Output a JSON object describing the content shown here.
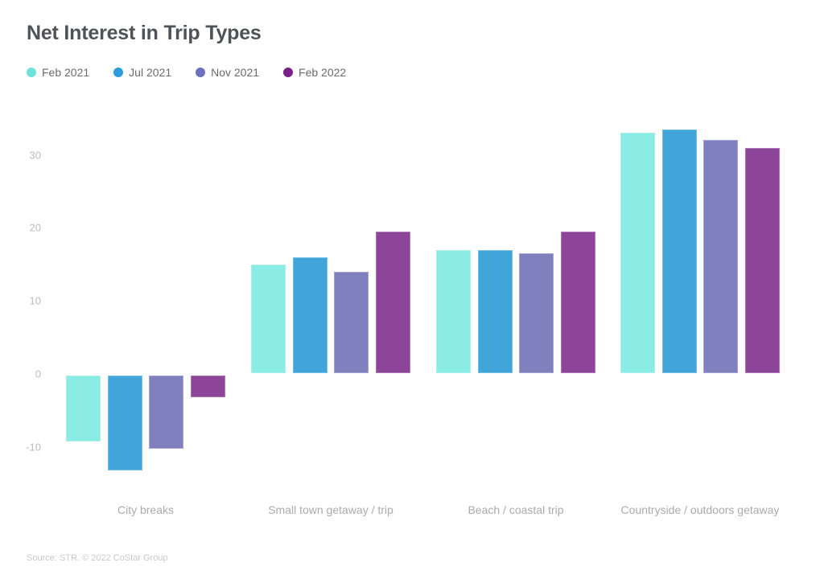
{
  "source": "Source: STR. © 2022 CoStar Group",
  "chart_data": {
    "type": "bar",
    "title": "Net Interest in Trip Types",
    "categories": [
      "City breaks",
      "Small town getaway / trip",
      "Beach / coastal trip",
      "Countryside / outdoors getaway"
    ],
    "series": [
      {
        "name": "Feb 2021",
        "bar_color": "#8aece4",
        "dot_color": "#6fe3db",
        "values": [
          -9,
          15,
          17,
          33
        ]
      },
      {
        "name": "Jul 2021",
        "bar_color": "#41a5da",
        "dot_color": "#2d9cdb",
        "values": [
          -13,
          16,
          17,
          33.5
        ]
      },
      {
        "name": "Nov 2021",
        "bar_color": "#8080bf",
        "dot_color": "#6f6fc0",
        "values": [
          -10,
          14,
          16.5,
          32
        ]
      },
      {
        "name": "Feb 2022",
        "bar_color": "#8c4598",
        "dot_color": "#7b1f8b",
        "values": [
          -3,
          19.5,
          19.5,
          31
        ]
      }
    ],
    "yticks": [
      30,
      20,
      10,
      0,
      -10
    ],
    "ylim": [
      -14.2,
      34.8
    ],
    "grid": false,
    "legend_position": "top-left",
    "xlabel": "",
    "ylabel": ""
  }
}
